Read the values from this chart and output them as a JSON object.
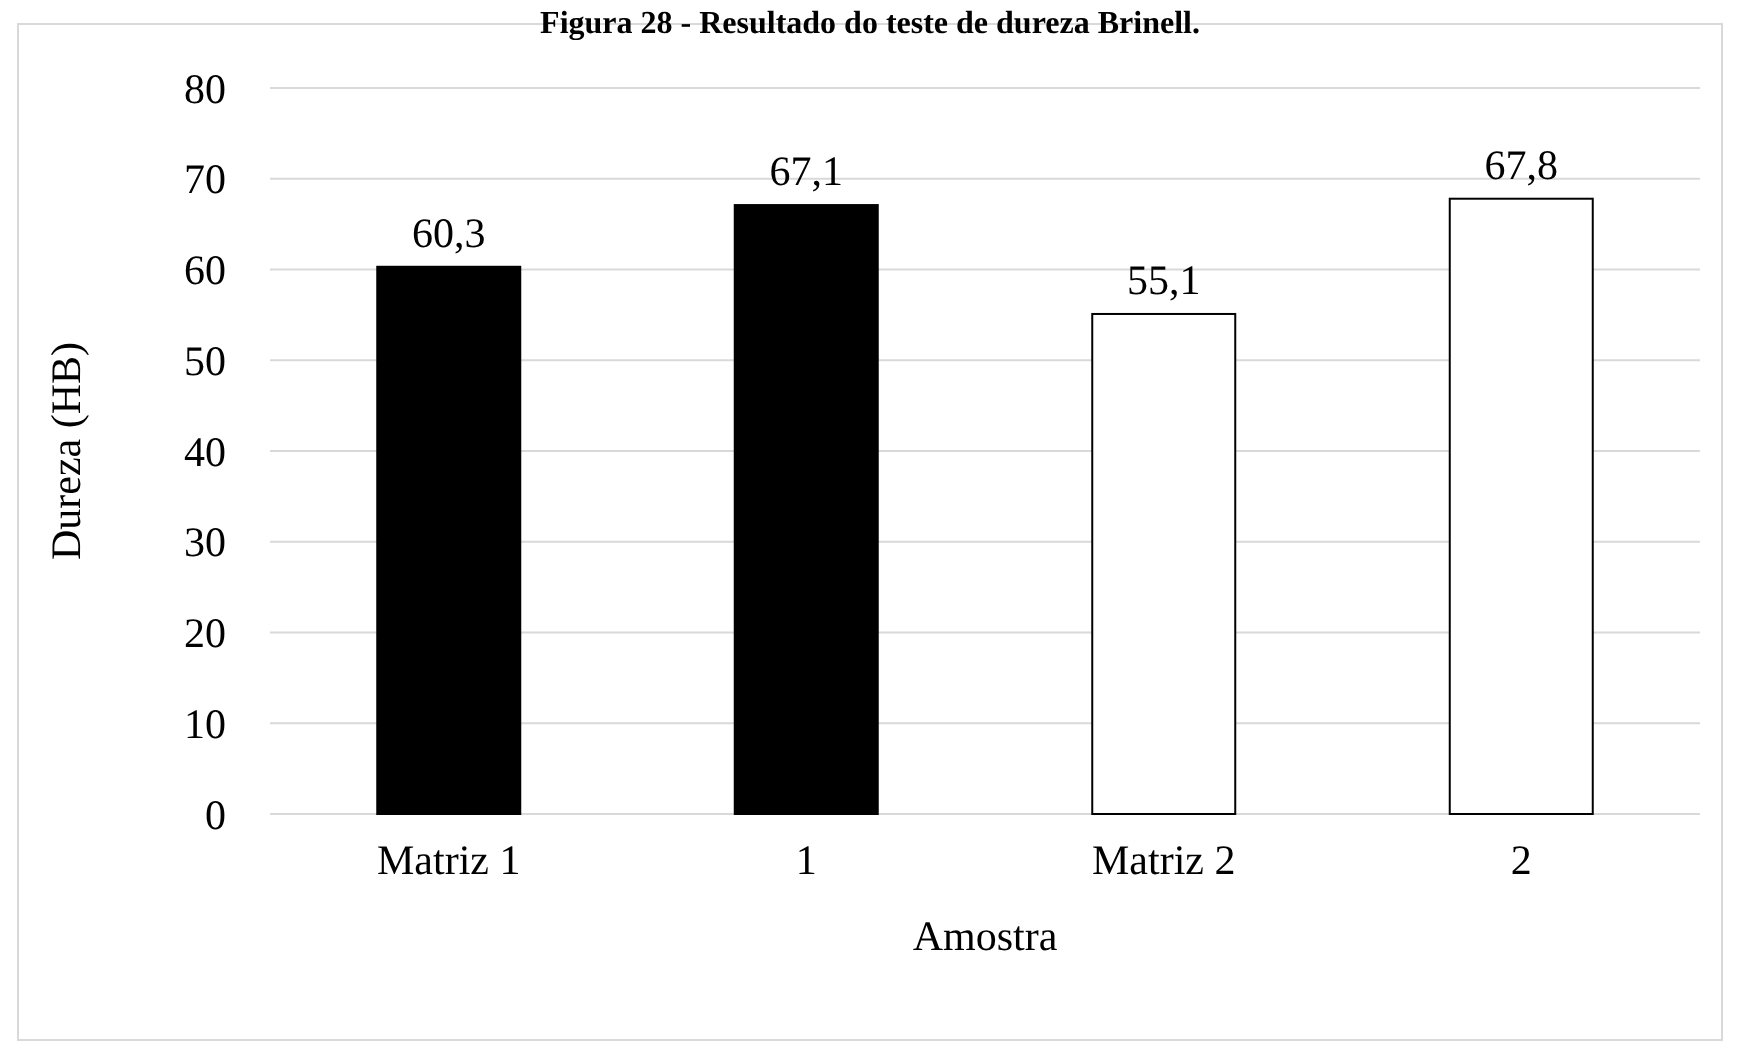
{
  "chart_data": {
    "type": "bar",
    "title": "Figura 28 - Resultado do teste de dureza Brinell.",
    "xlabel": "Amostra",
    "ylabel": "Dureza (HB)",
    "categories": [
      "Matriz 1",
      "1",
      "Matriz 2",
      "2"
    ],
    "values": [
      60.3,
      67.1,
      55.1,
      67.8
    ],
    "colors": [
      "#000000",
      "#000000",
      "#ffffff",
      "#ffffff"
    ],
    "value_labels": [
      "60,3",
      "67,1",
      "55,1",
      "67,8"
    ],
    "ylim": [
      0,
      80
    ],
    "yticks": [
      0,
      10,
      20,
      30,
      40,
      50,
      60,
      70,
      80
    ],
    "grid": "y"
  }
}
